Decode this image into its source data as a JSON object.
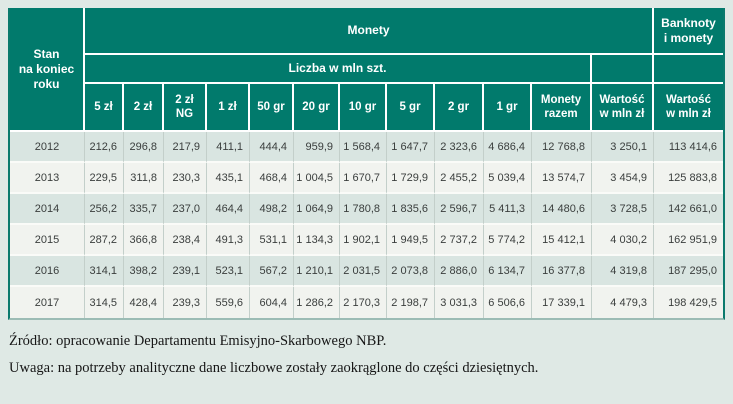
{
  "colors": {
    "header_background": "#017a6c",
    "header_text": "#ffffff",
    "row_stripe_teal": "#d9e5e1",
    "row_stripe_light": "#f1f3ef",
    "page_background": "#dfe9e5",
    "grid_vertical": "#c3cfca",
    "data_text": "#3a3e3d"
  },
  "table": {
    "corner_header": "Stan\nna koniec\nroku",
    "group_monety": "Monety",
    "group_banknoty": "Banknoty\ni monety",
    "subheader": "Liczba w mln szt.",
    "columns": [
      "5 zł",
      "2 zł",
      "2 zł\nNG",
      "1 zł",
      "50 gr",
      "20 gr",
      "10 gr",
      "5 gr",
      "2 gr",
      "1 gr",
      "Monety\nrazem",
      "Wartość\nw mln zł",
      "Wartość\nw mln zł"
    ],
    "rows": [
      {
        "year": "2012",
        "values": [
          "212,6",
          "296,8",
          "217,9",
          "411,1",
          "444,4",
          "959,9",
          "1 568,4",
          "1 647,7",
          "2 323,6",
          "4 686,4",
          "12 768,8",
          "3 250,1",
          "113 414,6"
        ]
      },
      {
        "year": "2013",
        "values": [
          "229,5",
          "311,8",
          "230,3",
          "435,1",
          "468,4",
          "1 004,5",
          "1 670,7",
          "1 729,9",
          "2 455,2",
          "5 039,4",
          "13 574,7",
          "3 454,9",
          "125 883,8"
        ]
      },
      {
        "year": "2014",
        "values": [
          "256,2",
          "335,7",
          "237,0",
          "464,4",
          "498,2",
          "1 064,9",
          "1 780,8",
          "1 835,6",
          "2 596,7",
          "5 411,3",
          "14 480,6",
          "3 728,5",
          "142 661,0"
        ]
      },
      {
        "year": "2015",
        "values": [
          "287,2",
          "366,8",
          "238,4",
          "491,3",
          "531,1",
          "1 134,3",
          "1 902,1",
          "1 949,5",
          "2 737,2",
          "5 774,2",
          "15 412,1",
          "4 030,2",
          "162 951,9"
        ]
      },
      {
        "year": "2016",
        "values": [
          "314,1",
          "398,2",
          "239,1",
          "523,1",
          "567,2",
          "1 210,1",
          "2 031,5",
          "2 073,8",
          "2 886,0",
          "6 134,7",
          "16 377,8",
          "4 319,8",
          "187 295,0"
        ]
      },
      {
        "year": "2017",
        "values": [
          "314,5",
          "428,4",
          "239,3",
          "559,6",
          "604,4",
          "1 286,2",
          "2 170,3",
          "2 198,7",
          "3 031,3",
          "6 506,6",
          "17 339,1",
          "4 479,3",
          "198 429,5"
        ]
      }
    ]
  },
  "notes": {
    "source": "Źródło: opracowanie Departamentu Emisyjno-Skarbowego NBP.",
    "remark": "Uwaga: na potrzeby analityczne dane liczbowe zostały zaokrąglone do części dziesiętnych."
  }
}
